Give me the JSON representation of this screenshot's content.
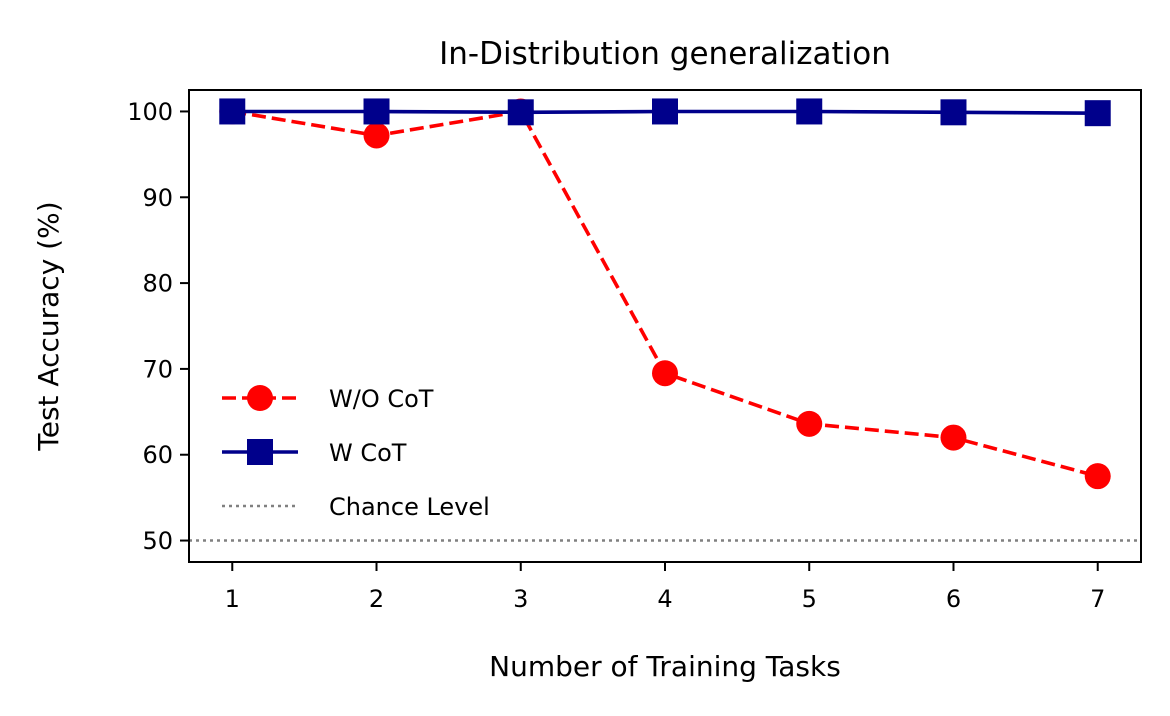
{
  "chart_data": {
    "type": "line",
    "title": "In-Distribution generalization",
    "xlabel": "Number of Training Tasks",
    "ylabel": "Test Accuracy (%)",
    "xlim": [
      0.7,
      7.3
    ],
    "ylim": [
      47.5,
      102.5
    ],
    "xticks": [
      1,
      2,
      3,
      4,
      5,
      6,
      7
    ],
    "yticks": [
      50,
      60,
      70,
      80,
      90,
      100
    ],
    "x": [
      1,
      2,
      3,
      4,
      5,
      6,
      7
    ],
    "series": [
      {
        "name": "W/O CoT",
        "values": [
          100,
          97.2,
          100,
          69.5,
          63.6,
          62.0,
          57.5
        ],
        "color": "#ff0000",
        "line_style": "dashed",
        "marker": "circle"
      },
      {
        "name": "W CoT",
        "values": [
          100,
          100,
          99.9,
          100,
          100,
          99.9,
          99.8
        ],
        "color": "#00008b",
        "line_style": "solid",
        "marker": "square"
      }
    ],
    "reference_lines": [
      {
        "name": "Chance Level",
        "y": 50,
        "color": "#808080",
        "line_style": "dotted"
      }
    ],
    "legend_position": "lower-left",
    "grid": false
  }
}
